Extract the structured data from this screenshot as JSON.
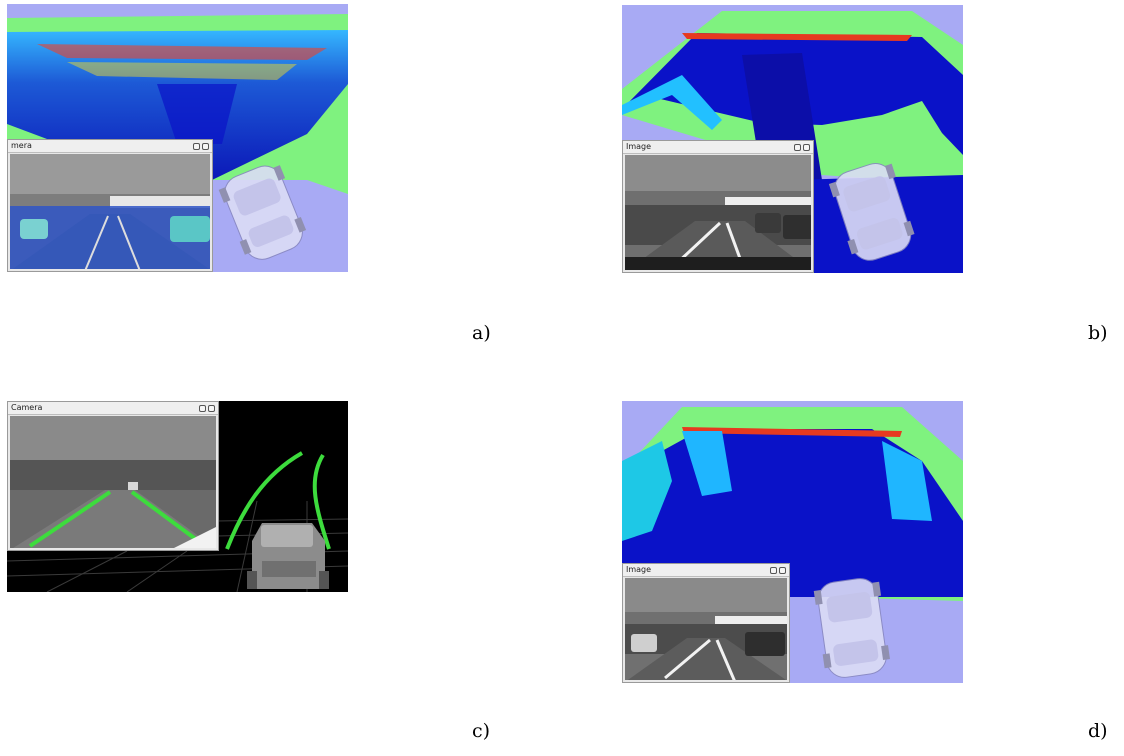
{
  "panels": [
    {
      "caption": "a)",
      "window_title": "mera",
      "view": "occupancy-grid-with-camera-overlay"
    },
    {
      "caption": "b)",
      "window_title": "Image",
      "view": "occupancy-grid-with-camera"
    },
    {
      "caption": "c)",
      "window_title": "Camera",
      "view": "lane-detection-3d"
    },
    {
      "caption": "d)",
      "window_title": "Image",
      "view": "occupancy-grid-with-camera"
    }
  ],
  "colors": {
    "unknown": "#a8aaf4",
    "free_far": "#7ff27f",
    "occupied_low": "#0a12c8",
    "lane_marking": "#3ddc3d",
    "background_3d": "#000000"
  }
}
